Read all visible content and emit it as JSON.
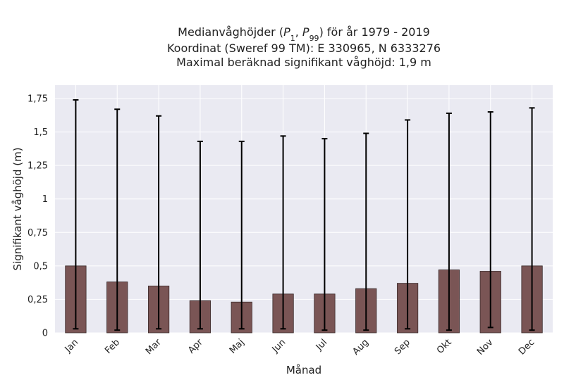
{
  "chart_data": {
    "type": "bar",
    "title_lines": [
      "Medianvåghöjder (P1, P99) för år 1979 - 2019",
      "Koordinat (Sweref 99 TM): E 330965, N 6333276",
      "Maximal beräknad signifikant våghöjd: 1,9 m"
    ],
    "xlabel": "Månad",
    "ylabel": "Signifikant våghöjd (m)",
    "categories": [
      "Jan",
      "Feb",
      "Mar",
      "Apr",
      "Maj",
      "Jun",
      "Jul",
      "Aug",
      "Sep",
      "Okt",
      "Nov",
      "Dec"
    ],
    "median": [
      0.5,
      0.38,
      0.35,
      0.24,
      0.23,
      0.29,
      0.29,
      0.33,
      0.37,
      0.47,
      0.46,
      0.5
    ],
    "p1": [
      0.03,
      0.02,
      0.03,
      0.03,
      0.03,
      0.03,
      0.02,
      0.02,
      0.03,
      0.02,
      0.04,
      0.02
    ],
    "p99": [
      1.74,
      1.67,
      1.62,
      1.43,
      1.43,
      1.47,
      1.45,
      1.49,
      1.59,
      1.64,
      1.65,
      1.68
    ],
    "ylim": [
      0,
      1.85
    ],
    "yticks": [
      0,
      0.25,
      0.5,
      0.75,
      1,
      1.25,
      1.5,
      1.75
    ],
    "ytick_labels": [
      "0",
      "0,25",
      "0,5",
      "0,75",
      "1",
      "1,25",
      "1,5",
      "1,75"
    ],
    "grid": true,
    "colors": {
      "bar_fill": "#7a5555",
      "bar_edge": "#3a2a2a",
      "error_bar": "#000000",
      "plot_background": "#eaeaf2",
      "grid": "#ffffff"
    }
  }
}
